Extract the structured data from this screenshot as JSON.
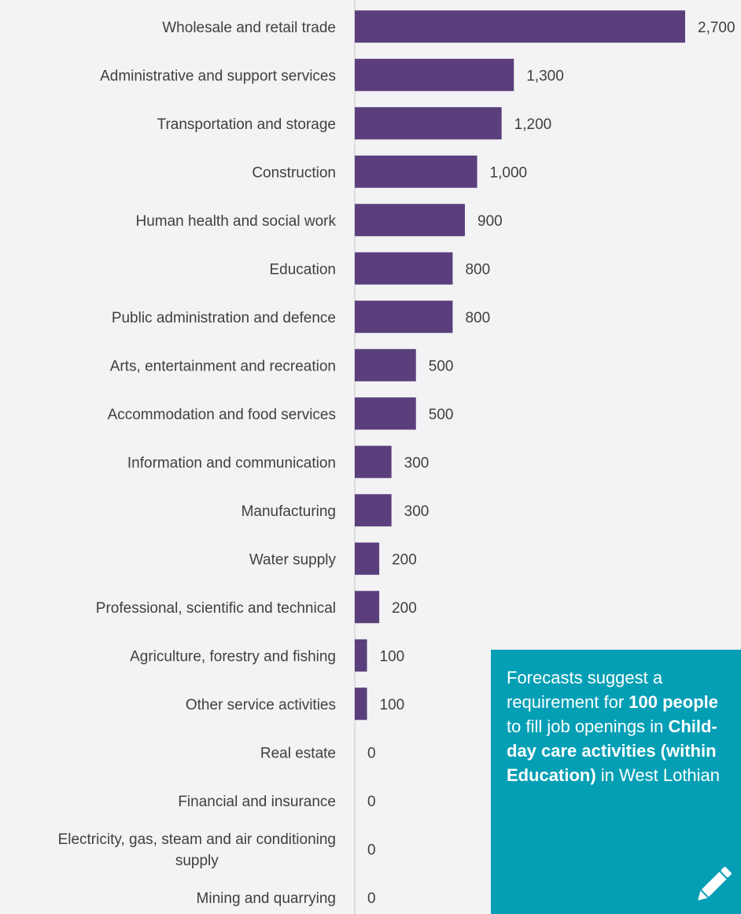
{
  "chart_data": {
    "type": "bar",
    "orientation": "horizontal",
    "categories": [
      "Wholesale and retail trade",
      "Administrative and support services",
      "Transportation and storage",
      "Construction",
      "Human health and social work",
      "Education",
      "Public administration and defence",
      "Arts, entertainment and recreation",
      "Accommodation and food services",
      "Information and communication",
      "Manufacturing",
      "Water supply",
      "Professional, scientific and technical",
      "Agriculture, forestry and fishing",
      "Other service activities",
      "Real estate",
      "Financial and insurance",
      "Electricity, gas, steam and air conditioning supply",
      "Mining and quarrying"
    ],
    "values": [
      2700,
      1300,
      1200,
      1000,
      900,
      800,
      800,
      500,
      500,
      300,
      300,
      200,
      200,
      100,
      100,
      0,
      0,
      0,
      0
    ],
    "value_labels": [
      "2,700",
      "1,300",
      "1,200",
      "1,000",
      "900",
      "800",
      "800",
      "500",
      "500",
      "300",
      "300",
      "200",
      "200",
      "100",
      "100",
      "0",
      "0",
      "0",
      "0"
    ],
    "title": "",
    "xlabel": "",
    "ylabel": "",
    "xlim": [
      0,
      2700
    ],
    "grid": false,
    "bar_color": "#5a3f7c",
    "axis_color": "#c8c8c8"
  },
  "callout": {
    "background": "#049fb5",
    "text_color": "#ffffff",
    "parts": [
      {
        "text": "Forecasts suggest a requirement for ",
        "bold": false
      },
      {
        "text": "100 people",
        "bold": true
      },
      {
        "text": " to fill job openings in ",
        "bold": false
      },
      {
        "text": "Child-day care activities (within Education)",
        "bold": true
      },
      {
        "text": " in West Lothian",
        "bold": false
      }
    ],
    "icon": "pencil-icon"
  }
}
